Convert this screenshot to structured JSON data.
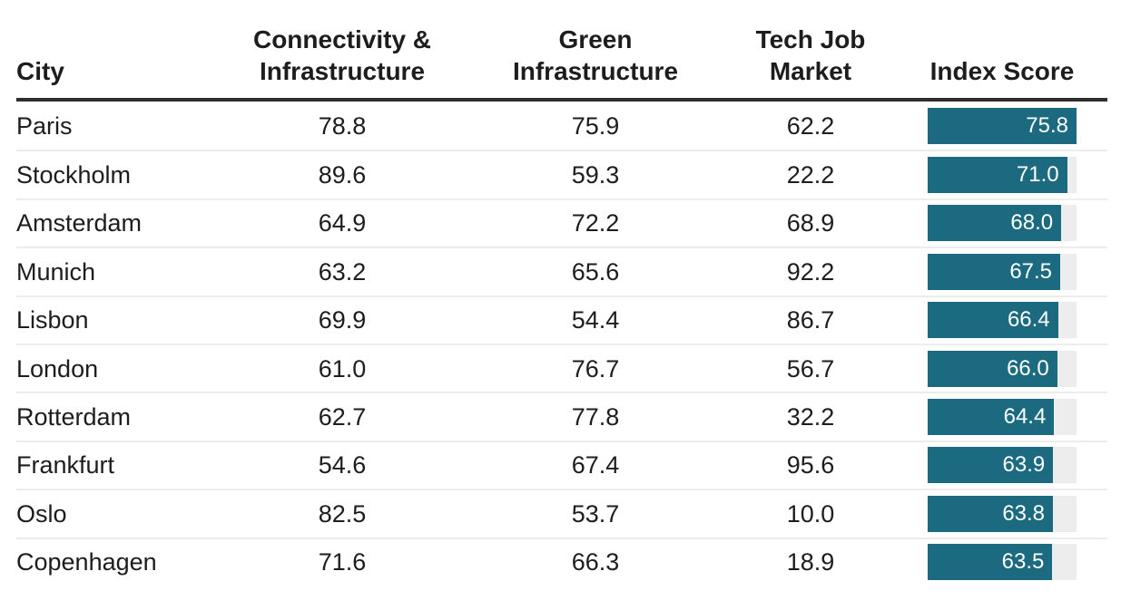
{
  "chart_data": {
    "type": "table",
    "columns": [
      "City",
      "Connectivity & Infrastructure",
      "Green Infrastructure",
      "Tech Job Market",
      "Index Score"
    ],
    "rows": [
      {
        "city": "Paris",
        "connectivity_infrastructure": 78.8,
        "green_infrastructure": 75.9,
        "tech_job_market": 62.2,
        "index_score": 75.8
      },
      {
        "city": "Stockholm",
        "connectivity_infrastructure": 89.6,
        "green_infrastructure": 59.3,
        "tech_job_market": 22.2,
        "index_score": 71.0
      },
      {
        "city": "Amsterdam",
        "connectivity_infrastructure": 64.9,
        "green_infrastructure": 72.2,
        "tech_job_market": 68.9,
        "index_score": 68.0
      },
      {
        "city": "Munich",
        "connectivity_infrastructure": 63.2,
        "green_infrastructure": 65.6,
        "tech_job_market": 92.2,
        "index_score": 67.5
      },
      {
        "city": "Lisbon",
        "connectivity_infrastructure": 69.9,
        "green_infrastructure": 54.4,
        "tech_job_market": 86.7,
        "index_score": 66.4
      },
      {
        "city": "London",
        "connectivity_infrastructure": 61.0,
        "green_infrastructure": 76.7,
        "tech_job_market": 56.7,
        "index_score": 66.0
      },
      {
        "city": "Rotterdam",
        "connectivity_infrastructure": 62.7,
        "green_infrastructure": 77.8,
        "tech_job_market": 32.2,
        "index_score": 64.4
      },
      {
        "city": "Frankfurt",
        "connectivity_infrastructure": 54.6,
        "green_infrastructure": 67.4,
        "tech_job_market": 95.6,
        "index_score": 63.9
      },
      {
        "city": "Oslo",
        "connectivity_infrastructure": 82.5,
        "green_infrastructure": 53.7,
        "tech_job_market": 10.0,
        "index_score": 63.8
      },
      {
        "city": "Copenhagen",
        "connectivity_infrastructure": 71.6,
        "green_infrastructure": 66.3,
        "tech_job_market": 18.9,
        "index_score": 63.5
      }
    ],
    "bar_column": "Index Score",
    "bar_scale": {
      "min": 0,
      "max_is_largest_value": true,
      "largest_value": 75.8
    },
    "value_decimals": 1,
    "layout": {
      "grid": false,
      "legend": false,
      "bar_labels_inside": true
    }
  },
  "colors": {
    "bar_fill": "#1c6a80",
    "bar_track": "#ededed",
    "bar_label_text": "#ffffff",
    "header_rule": "#2e2e2e",
    "row_separator": "#ececec",
    "text": "#1d1d1d",
    "background": "#ffffff"
  }
}
